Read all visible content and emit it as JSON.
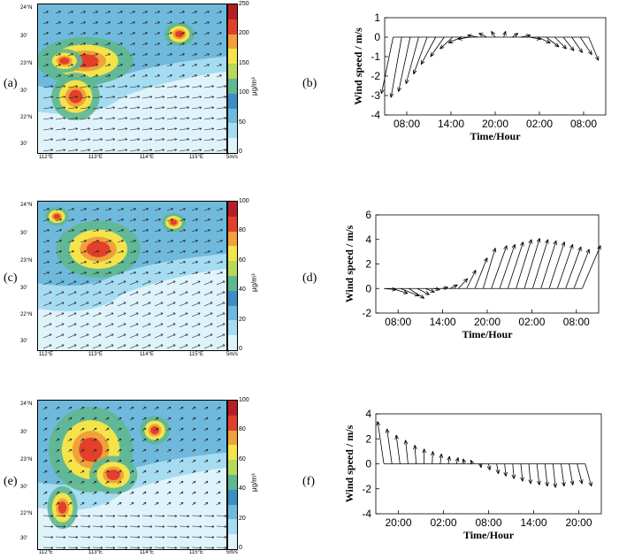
{
  "panels": {
    "a": "(a)",
    "b": "(b)",
    "c": "(c)",
    "d": "(d)",
    "e": "(e)",
    "f": "(f)"
  },
  "maps": {
    "lat_labels": [
      "24°N",
      "30'",
      "23°N",
      "30'",
      "22°N",
      "30'"
    ],
    "lon_labels": [
      "112°E",
      "113°E",
      "114°E",
      "115°E"
    ],
    "scale_label": "5m/s",
    "unit": "μg/m³",
    "colors": [
      "#dff3fb",
      "#a6dcf2",
      "#6fb9dd",
      "#3b8fc3",
      "#5fb88f",
      "#b6d95a",
      "#f4e44a",
      "#f0a13a",
      "#e2402b",
      "#b51f28"
    ],
    "a": {
      "ticks": [
        "250",
        "200",
        "150",
        "100",
        "50",
        "0"
      ]
    },
    "c": {
      "ticks": [
        "100",
        "80",
        "60",
        "40",
        "20",
        "0"
      ]
    },
    "e": {
      "ticks": [
        "100",
        "80",
        "60",
        "40",
        "20",
        "0"
      ]
    }
  },
  "chart_data": [
    {
      "id": "b",
      "type": "line",
      "title": "",
      "xlabel": "Time/Hour",
      "ylabel": "Wind speed / m/s",
      "xticks": [
        "08:00",
        "14:00",
        "20:00",
        "02:00",
        "08:00"
      ],
      "ylim": [
        -4,
        1
      ],
      "yticks": [
        "1",
        "0",
        "-1",
        "-2",
        "-3",
        "-4"
      ],
      "x_range_hours": [
        0,
        24
      ],
      "series": [
        {
          "x_hours": [
            0,
            1,
            2,
            3,
            4,
            5,
            6,
            7,
            8,
            9,
            10,
            11,
            12,
            13,
            14,
            15,
            16,
            17,
            18,
            19,
            20,
            21,
            22,
            23
          ],
          "u": [
            -1.2,
            -1.1,
            -1.2,
            -1.3,
            -1.4,
            -1.5,
            -1.4,
            -1.3,
            -1.3,
            -1.2,
            -1.1,
            -0.8,
            -0.4,
            0.2,
            0.6,
            1.0,
            1.2,
            1.3,
            1.3,
            1.2,
            1.1,
            1.1,
            1.2,
            1.0
          ],
          "v": [
            -2.9,
            -3.1,
            -2.8,
            -2.4,
            -1.9,
            -1.4,
            -1.0,
            -0.6,
            -0.3,
            -0.1,
            0.1,
            0.2,
            0.3,
            0.3,
            0.2,
            0.1,
            -0.1,
            -0.3,
            -0.5,
            -0.6,
            -0.7,
            -0.8,
            -0.9,
            -1.2
          ]
        }
      ]
    },
    {
      "id": "d",
      "type": "line",
      "title": "",
      "xlabel": "Time/Hour",
      "ylabel": "Wind speed / m/s",
      "xticks": [
        "08:00",
        "14:00",
        "20:00",
        "02:00",
        "08:00"
      ],
      "ylim": [
        -2,
        6
      ],
      "yticks": [
        "6",
        "4",
        "2",
        "0",
        "-2"
      ],
      "x_range_hours": [
        0,
        30
      ],
      "series": [
        {
          "x_hours": [
            0,
            1,
            2,
            3,
            4,
            5,
            6,
            7,
            8,
            9,
            10,
            11,
            12,
            13,
            14,
            15,
            16,
            17,
            18,
            19,
            20,
            21,
            22,
            23,
            24
          ],
          "u": [
            2.0,
            2.5,
            3.0,
            2.5,
            2.0,
            1.5,
            1.0,
            1.0,
            1.2,
            1.5,
            1.5,
            2.0,
            2.0,
            2.5,
            2.5,
            2.5,
            2.5,
            2.5,
            2.5,
            2.5,
            2.5,
            2.5,
            2.5,
            2.5,
            3.0
          ],
          "v": [
            -0.1,
            -0.4,
            -0.6,
            -0.8,
            -0.5,
            -0.3,
            -0.1,
            0.1,
            0.3,
            0.8,
            1.5,
            2.5,
            3.3,
            3.5,
            3.6,
            3.8,
            4.0,
            4.1,
            4.0,
            3.9,
            3.8,
            3.6,
            3.4,
            3.2,
            3.5
          ]
        }
      ]
    },
    {
      "id": "f",
      "type": "line",
      "title": "",
      "xlabel": "Time/Hour",
      "ylabel": "Wind speed / m/s",
      "xticks": [
        "20:00",
        "02:00",
        "08:00",
        "14:00",
        "20:00"
      ],
      "ylim": [
        -4,
        4
      ],
      "yticks": [
        "4",
        "2",
        "0",
        "-2",
        "-4"
      ],
      "x_range_hours": [
        0,
        30
      ],
      "series": [
        {
          "x_hours": [
            0,
            1,
            2,
            3,
            4,
            5,
            6,
            7,
            8,
            9,
            10,
            11,
            12,
            13,
            14,
            15,
            16,
            17,
            18,
            19,
            20,
            21,
            22,
            23,
            24,
            25
          ],
          "u": [
            -1.0,
            -0.8,
            -0.6,
            -0.4,
            -0.2,
            0.0,
            0.1,
            0.2,
            0.2,
            0.3,
            -0.2,
            -0.3,
            0.1,
            0.2,
            0.3,
            0.2,
            0.2,
            0.3,
            0.3,
            0.4,
            0.4,
            0.4,
            0.5,
            0.6,
            0.8,
            1.0
          ],
          "v": [
            3.4,
            2.8,
            2.3,
            1.9,
            1.5,
            1.2,
            1.0,
            0.8,
            0.6,
            0.5,
            0.4,
            0.3,
            -0.3,
            -0.5,
            -0.8,
            -1.0,
            -1.2,
            -1.4,
            -1.6,
            -1.7,
            -1.8,
            -1.9,
            -1.8,
            -1.7,
            -1.6,
            -1.8
          ]
        }
      ]
    }
  ]
}
